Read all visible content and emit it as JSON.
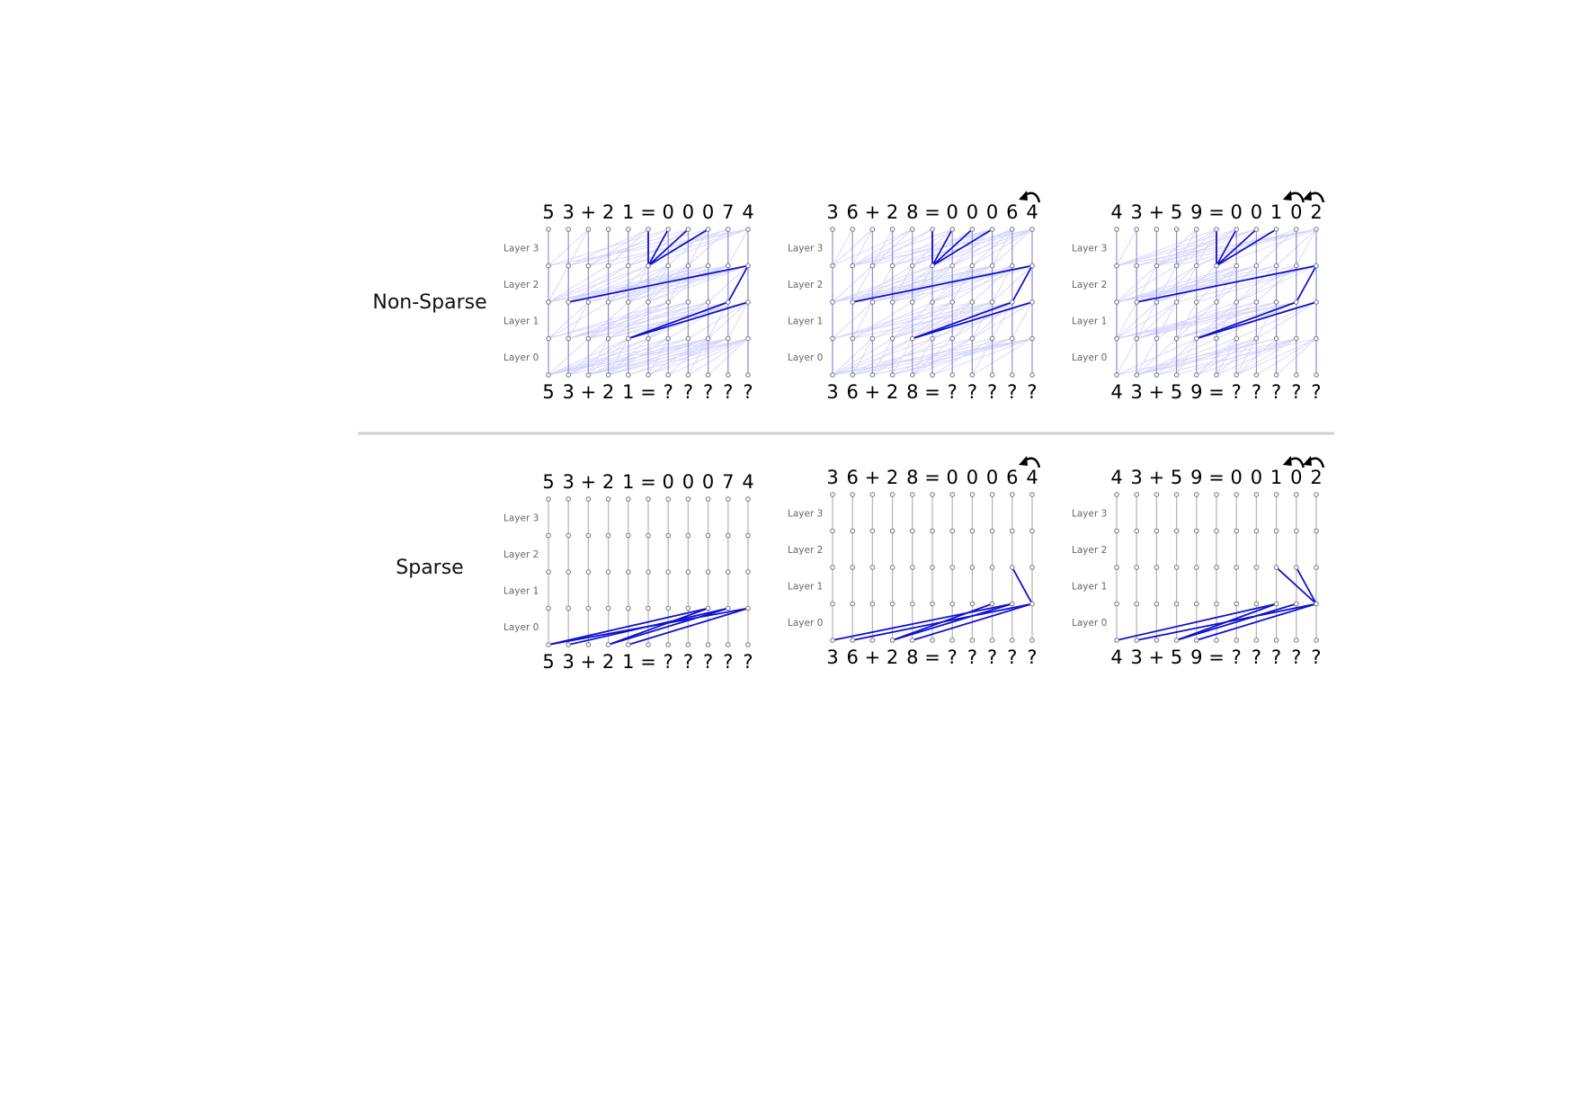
{
  "rows": [
    {
      "label": "Non-Sparse",
      "panels": [
        {
          "output_tokens": [
            "5",
            "3",
            "+",
            "2",
            "1",
            "=",
            "0",
            "0",
            "0",
            "7",
            "4"
          ],
          "input_tokens": [
            "5",
            "3",
            "+",
            "2",
            "1",
            "=",
            "?",
            "?",
            "?",
            "?",
            "?"
          ],
          "carry_arrows_over_tokens": [],
          "highlighted_edges": [
            {
              "from": [
                3,
                5
              ],
              "to": [
                4,
                6
              ]
            },
            {
              "from": [
                3,
                5
              ],
              "to": [
                4,
                7
              ]
            },
            {
              "from": [
                3,
                5
              ],
              "to": [
                4,
                8
              ]
            },
            {
              "from": [
                3,
                5
              ],
              "to": [
                4,
                5
              ]
            },
            {
              "from": [
                2,
                1
              ],
              "to": [
                3,
                10
              ]
            },
            {
              "from": [
                2,
                9
              ],
              "to": [
                3,
                10
              ]
            },
            {
              "from": [
                1,
                4
              ],
              "to": [
                2,
                10
              ]
            },
            {
              "from": [
                1,
                4
              ],
              "to": [
                2,
                9
              ]
            }
          ]
        },
        {
          "output_tokens": [
            "3",
            "6",
            "+",
            "2",
            "8",
            "=",
            "0",
            "0",
            "0",
            "6",
            "4"
          ],
          "input_tokens": [
            "3",
            "6",
            "+",
            "2",
            "8",
            "=",
            "?",
            "?",
            "?",
            "?",
            "?"
          ],
          "carry_arrows_over_tokens": [
            10
          ],
          "highlighted_edges": [
            {
              "from": [
                3,
                5
              ],
              "to": [
                4,
                6
              ]
            },
            {
              "from": [
                3,
                5
              ],
              "to": [
                4,
                7
              ]
            },
            {
              "from": [
                3,
                5
              ],
              "to": [
                4,
                8
              ]
            },
            {
              "from": [
                3,
                5
              ],
              "to": [
                4,
                5
              ]
            },
            {
              "from": [
                2,
                1
              ],
              "to": [
                3,
                10
              ]
            },
            {
              "from": [
                2,
                9
              ],
              "to": [
                3,
                10
              ]
            },
            {
              "from": [
                1,
                4
              ],
              "to": [
                2,
                10
              ]
            },
            {
              "from": [
                1,
                4
              ],
              "to": [
                2,
                9
              ]
            }
          ]
        },
        {
          "output_tokens": [
            "4",
            "3",
            "+",
            "5",
            "9",
            "=",
            "0",
            "0",
            "1",
            "0",
            "2"
          ],
          "input_tokens": [
            "4",
            "3",
            "+",
            "5",
            "9",
            "=",
            "?",
            "?",
            "?",
            "?",
            "?"
          ],
          "carry_arrows_over_tokens": [
            9,
            10
          ],
          "highlighted_edges": [
            {
              "from": [
                3,
                5
              ],
              "to": [
                4,
                6
              ]
            },
            {
              "from": [
                3,
                5
              ],
              "to": [
                4,
                7
              ]
            },
            {
              "from": [
                3,
                5
              ],
              "to": [
                4,
                8
              ]
            },
            {
              "from": [
                3,
                5
              ],
              "to": [
                4,
                5
              ]
            },
            {
              "from": [
                2,
                1
              ],
              "to": [
                3,
                10
              ]
            },
            {
              "from": [
                2,
                9
              ],
              "to": [
                3,
                10
              ]
            },
            {
              "from": [
                1,
                4
              ],
              "to": [
                2,
                10
              ]
            },
            {
              "from": [
                1,
                4
              ],
              "to": [
                2,
                9
              ]
            }
          ]
        }
      ]
    },
    {
      "label": "Sparse",
      "panels": [
        {
          "output_tokens": [
            "5",
            "3",
            "+",
            "2",
            "1",
            "=",
            "0",
            "0",
            "0",
            "7",
            "4"
          ],
          "input_tokens": [
            "5",
            "3",
            "+",
            "2",
            "1",
            "=",
            "?",
            "?",
            "?",
            "?",
            "?"
          ],
          "carry_arrows_over_tokens": [],
          "highlighted_edges": [
            {
              "from": [
                0,
                0
              ],
              "to": [
                1,
                8
              ]
            },
            {
              "from": [
                0,
                1
              ],
              "to": [
                1,
                9
              ]
            },
            {
              "from": [
                0,
                3
              ],
              "to": [
                1,
                8
              ]
            },
            {
              "from": [
                0,
                3
              ],
              "to": [
                1,
                9
              ]
            },
            {
              "from": [
                0,
                4
              ],
              "to": [
                1,
                10
              ]
            },
            {
              "from": [
                0,
                0
              ],
              "to": [
                1,
                10
              ]
            }
          ]
        },
        {
          "output_tokens": [
            "3",
            "6",
            "+",
            "2",
            "8",
            "=",
            "0",
            "0",
            "0",
            "6",
            "4"
          ],
          "input_tokens": [
            "3",
            "6",
            "+",
            "2",
            "8",
            "=",
            "?",
            "?",
            "?",
            "?",
            "?"
          ],
          "carry_arrows_over_tokens": [
            10
          ],
          "highlighted_edges": [
            {
              "from": [
                0,
                0
              ],
              "to": [
                1,
                9
              ]
            },
            {
              "from": [
                0,
                1
              ],
              "to": [
                1,
                10
              ]
            },
            {
              "from": [
                0,
                3
              ],
              "to": [
                1,
                8
              ]
            },
            {
              "from": [
                0,
                3
              ],
              "to": [
                1,
                9
              ]
            },
            {
              "from": [
                0,
                4
              ],
              "to": [
                1,
                10
              ]
            },
            {
              "from": [
                1,
                10
              ],
              "to": [
                2,
                9
              ]
            }
          ]
        },
        {
          "output_tokens": [
            "4",
            "3",
            "+",
            "5",
            "9",
            "=",
            "0",
            "0",
            "1",
            "0",
            "2"
          ],
          "input_tokens": [
            "4",
            "3",
            "+",
            "5",
            "9",
            "=",
            "?",
            "?",
            "?",
            "?",
            "?"
          ],
          "carry_arrows_over_tokens": [
            9,
            10
          ],
          "highlighted_edges": [
            {
              "from": [
                0,
                0
              ],
              "to": [
                1,
                8
              ]
            },
            {
              "from": [
                0,
                1
              ],
              "to": [
                1,
                10
              ]
            },
            {
              "from": [
                0,
                3
              ],
              "to": [
                1,
                9
              ]
            },
            {
              "from": [
                0,
                3
              ],
              "to": [
                1,
                8
              ]
            },
            {
              "from": [
                0,
                4
              ],
              "to": [
                1,
                10
              ]
            },
            {
              "from": [
                1,
                10
              ],
              "to": [
                2,
                8
              ]
            },
            {
              "from": [
                1,
                10
              ],
              "to": [
                2,
                9
              ]
            }
          ]
        }
      ]
    }
  ],
  "layer_labels": [
    "Layer 0",
    "Layer 1",
    "Layer 2",
    "Layer 3"
  ],
  "colors": {
    "highlight_edge": "#1010d0",
    "background_edge": "#6a6af0",
    "node_stroke": "#777777",
    "separator": "#d0d0d0"
  }
}
